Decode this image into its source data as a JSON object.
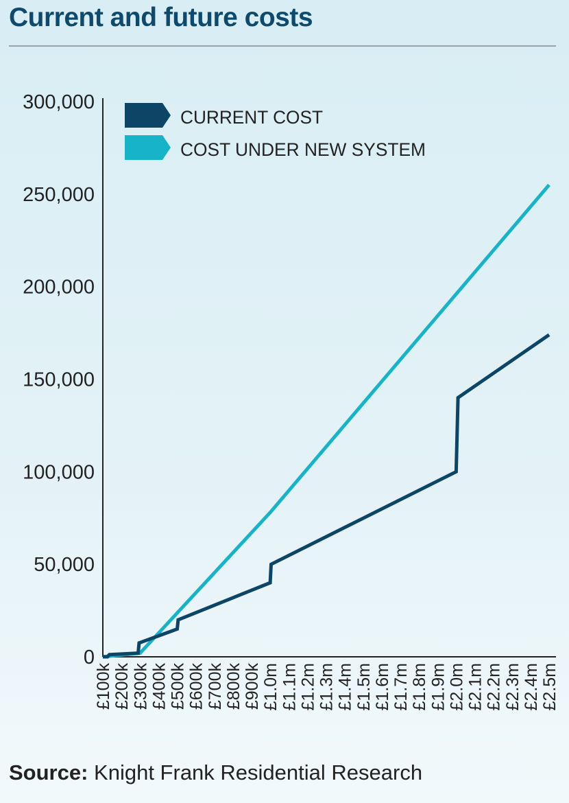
{
  "title": "Current and future costs",
  "source": {
    "label": "Source:",
    "text": "Knight Frank Residential Research"
  },
  "colors": {
    "current": "#0c4566",
    "new": "#17b3c8",
    "axis": "#222222"
  },
  "chart_data": {
    "type": "line",
    "title": "Current and future costs",
    "xlabel": "",
    "ylabel": "",
    "categories": [
      "£100k",
      "£200k",
      "£300k",
      "£400k",
      "£500k",
      "£600k",
      "£700k",
      "£800k",
      "£900k",
      "£1.0m",
      "£1.1m",
      "£1.2m",
      "£1.3m",
      "£1.4m",
      "£1.5m",
      "£1.6m",
      "£1.7m",
      "£1.8m",
      "£1.9m",
      "£2.0m",
      "£2.1m",
      "£2.2m",
      "£2.3m",
      "£2.4m",
      "£2.5m"
    ],
    "category_values_k": [
      100,
      200,
      300,
      400,
      500,
      600,
      700,
      800,
      900,
      1000,
      1100,
      1200,
      1300,
      1400,
      1500,
      1600,
      1700,
      1800,
      1900,
      2000,
      2100,
      2200,
      2300,
      2400,
      2500
    ],
    "xlim_k": [
      100,
      2500
    ],
    "ylim": [
      0,
      300000
    ],
    "yticks": [
      0,
      50000,
      100000,
      150000,
      200000,
      250000,
      300000
    ],
    "ytick_labels": [
      "0",
      "50,000",
      "100,000",
      "150,000",
      "200,000",
      "250,000",
      "300,000"
    ],
    "legend_position": "top-left",
    "grid": false,
    "series": [
      {
        "name": "CURRENT COST",
        "color": "#0c4566",
        "points": [
          [
            100,
            0
          ],
          [
            125,
            0
          ],
          [
            135,
            1200
          ],
          [
            290,
            2000
          ],
          [
            295,
            7500
          ],
          [
            500,
            15000
          ],
          [
            505,
            20000
          ],
          [
            1000,
            40000
          ],
          [
            1005,
            50000
          ],
          [
            2000,
            100000
          ],
          [
            2010,
            140000
          ],
          [
            2500,
            174000
          ]
        ]
      },
      {
        "name": "COST UNDER NEW SYSTEM",
        "color": "#17b3c8",
        "points": [
          [
            100,
            0
          ],
          [
            300,
            2000
          ],
          [
            1000,
            78000
          ],
          [
            2500,
            255000
          ]
        ]
      }
    ]
  }
}
